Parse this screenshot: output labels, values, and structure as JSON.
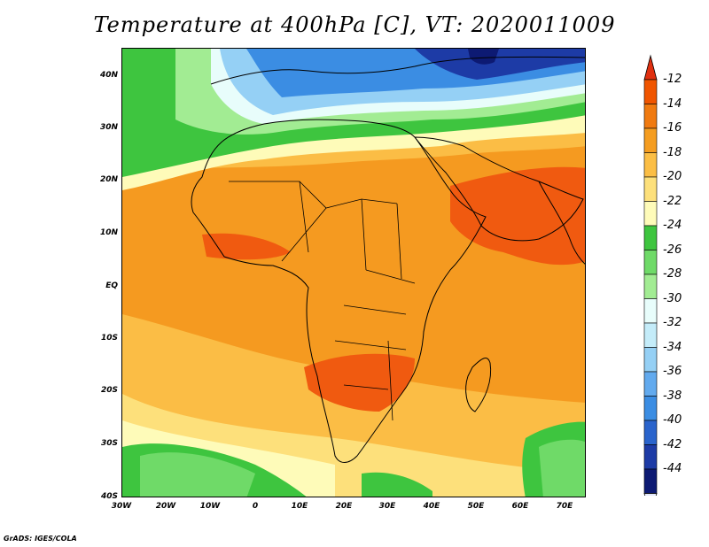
{
  "title": "Temperature at 400hPa [C], VT: 2020011009",
  "credit": "GrADS: IGES/COLA",
  "lat_labels": [
    "40N",
    "30N",
    "20N",
    "10N",
    "EQ",
    "10S",
    "20S",
    "30S",
    "40S"
  ],
  "lon_labels": [
    "30W",
    "20W",
    "10W",
    "0",
    "10E",
    "20E",
    "30E",
    "40E",
    "50E",
    "60E",
    "70E"
  ],
  "colorbar": {
    "labels": [
      "-12",
      "-14",
      "-16",
      "-18",
      "-20",
      "-22",
      "-24",
      "-26",
      "-28",
      "-30",
      "-32",
      "-34",
      "-36",
      "-38",
      "-40",
      "-42",
      "-44"
    ],
    "colors": [
      "#f05500",
      "#f07a10",
      "#f59d20",
      "#fbbe45",
      "#fde07b",
      "#fefbb9",
      "#3ec53f",
      "#6fda68",
      "#a2ec93",
      "#e8fdfb",
      "#c4ecf9",
      "#95d0f5",
      "#62aaee",
      "#3b8de3",
      "#2a64cc",
      "#1d3ba6",
      "#0d1a73"
    ],
    "over_color": "#e03010",
    "under_color": "#e3e8fb"
  },
  "map_colors": {
    "land_outline": "#000000",
    "warmest": "#f05a10",
    "warm": "#f59a20",
    "mild": "#fbbd45",
    "cool_yellow": "#fde07b",
    "pale": "#fefbb9",
    "green": "#3ec53f",
    "light_green": "#a2ec93",
    "pale_cyan": "#e8fdfb",
    "light_blue": "#95d0f5",
    "blue": "#3b8de3",
    "dark_blue": "#1d3ba6",
    "navy": "#0d1a73"
  }
}
